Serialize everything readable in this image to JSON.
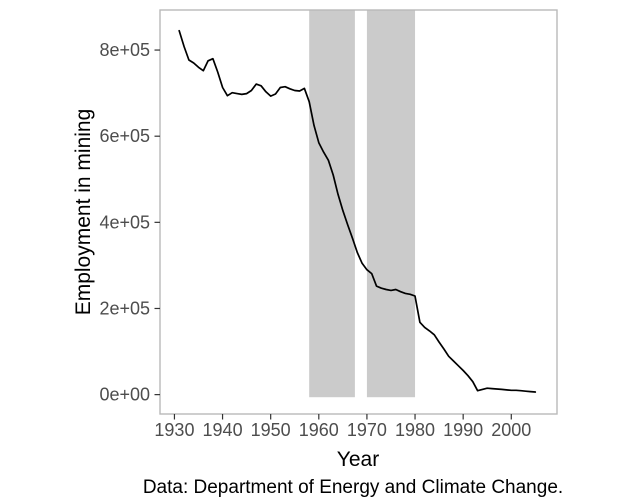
{
  "figure": {
    "background": "#ffffff"
  },
  "chart_data": {
    "type": "line",
    "title": "",
    "xlabel": "Year",
    "ylabel": "Employment in mining",
    "caption": "Data: Department of Energy and Climate Change.",
    "grid": false,
    "legend": "none",
    "xlim": [
      1927,
      2009.5
    ],
    "ylim": [
      -45000,
      893000
    ],
    "x_ticks": [
      1930,
      1940,
      1950,
      1960,
      1970,
      1980,
      1990,
      2000
    ],
    "y_ticks": [
      {
        "value": 0,
        "label": "0e+00"
      },
      {
        "value": 200000,
        "label": "2e+05"
      },
      {
        "value": 400000,
        "label": "4e+05"
      },
      {
        "value": 600000,
        "label": "6e+05"
      },
      {
        "value": 800000,
        "label": "8e+05"
      }
    ],
    "shaded_regions": [
      {
        "x_start": 1958,
        "x_end": 1967.5,
        "y_start": -6000,
        "y_end": 893000,
        "color": "#cbcbcb"
      },
      {
        "x_start": 1970,
        "x_end": 1980,
        "y_start": -6000,
        "y_end": 893000,
        "color": "#cbcbcb"
      }
    ],
    "series": [
      {
        "name": "Employment in mining",
        "color": "#000000",
        "x": [
          1931,
          1932,
          1933,
          1934,
          1935,
          1936,
          1937,
          1938,
          1939,
          1940,
          1941,
          1942,
          1943,
          1944,
          1945,
          1946,
          1947,
          1948,
          1949,
          1950,
          1951,
          1952,
          1953,
          1954,
          1955,
          1956,
          1957,
          1958,
          1959,
          1960,
          1961,
          1962,
          1963,
          1964,
          1965,
          1966,
          1967,
          1968,
          1969,
          1970,
          1971,
          1972,
          1973,
          1974,
          1975,
          1976,
          1977,
          1978,
          1979,
          1980,
          1981,
          1982,
          1983,
          1984,
          1985,
          1986,
          1987,
          1988,
          1989,
          1990,
          1991,
          1992,
          1993,
          1994,
          1995,
          1996,
          1997,
          1998,
          1999,
          2000,
          2001,
          2002,
          2003,
          2004,
          2005
        ],
        "y": [
          845000,
          808000,
          777000,
          770000,
          760000,
          752000,
          775000,
          780000,
          749000,
          713000,
          694000,
          701000,
          699000,
          697000,
          699000,
          706000,
          721000,
          717000,
          703000,
          693000,
          698000,
          713000,
          715000,
          710000,
          706000,
          705000,
          711000,
          680000,
          625000,
          585000,
          563000,
          544000,
          510000,
          465000,
          427000,
          394000,
          363000,
          330000,
          305000,
          290000,
          281000,
          252000,
          247000,
          244000,
          242000,
          244000,
          239000,
          235000,
          233000,
          229000,
          168000,
          156000,
          148000,
          139000,
          122000,
          106000,
          89000,
          78000,
          67000,
          56000,
          44000,
          30000,
          9000,
          12000,
          15000,
          14000,
          13000,
          12000,
          11000,
          10000,
          10000,
          9000,
          8000,
          7000,
          6000
        ]
      }
    ]
  },
  "style": {
    "panel_border_color": "#b9b9b9",
    "tick_mark_color": "#333333",
    "tick_label_color": "#4d4d4d",
    "line_color": "#000000",
    "band_color": "#cbcbcb"
  }
}
